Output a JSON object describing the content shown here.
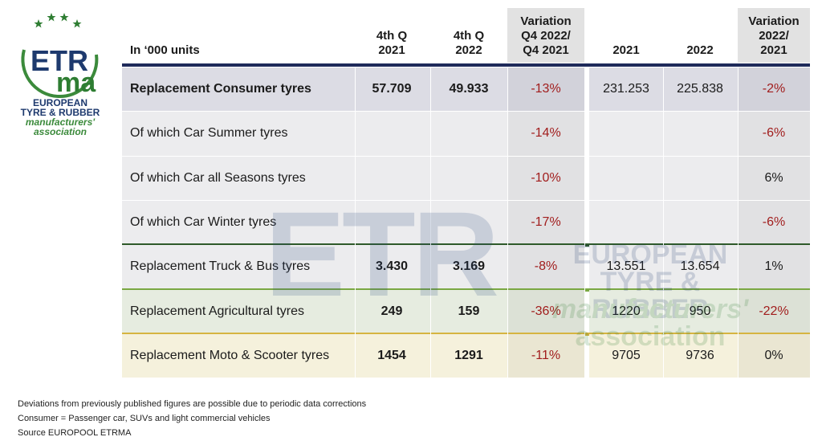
{
  "logo": {
    "letters_top": "ETR",
    "letters_bottom": "ma",
    "line1": "EUROPEAN",
    "line2": "TYRE & RUBBER",
    "line3": "manufacturers'",
    "line4": "association"
  },
  "colors": {
    "navy": "#1e2a5a",
    "dark_green": "#2f5a2a",
    "light_green": "#7aa843",
    "gold": "#d6b441",
    "negative": "#a11d1d",
    "row_grey": "#ececee",
    "row_blue": "#dcdce4",
    "row_green": "#e6ece0",
    "row_cream": "#f5f1dc",
    "variation_col": "#e2e2e2"
  },
  "chart_data": {
    "type": "table",
    "unit_label": "In ‘000 units",
    "columns": [
      "4th Q\n2021",
      "4th Q\n2022",
      "Variation\nQ4 2022/\nQ4 2021",
      "2021",
      "2022",
      "Variation\n2022/\n2021"
    ],
    "rows": [
      {
        "label": "Replacement Consumer tyres",
        "bold": true,
        "q4_2021": "57.709",
        "q4_2022": "49.933",
        "var_q4": "-13%",
        "y2021": "231.253",
        "y2022": "225.838",
        "var_year": "-2%"
      },
      {
        "label": "Of which Car Summer tyres",
        "bold": false,
        "q4_2021": "",
        "q4_2022": "",
        "var_q4": "-14%",
        "y2021": "",
        "y2022": "",
        "var_year": "-6%"
      },
      {
        "label": "Of which Car all Seasons tyres",
        "bold": false,
        "q4_2021": "",
        "q4_2022": "",
        "var_q4": "-10%",
        "y2021": "",
        "y2022": "",
        "var_year": "6%"
      },
      {
        "label": "Of which Car Winter tyres",
        "bold": false,
        "q4_2021": "",
        "q4_2022": "",
        "var_q4": "-17%",
        "y2021": "",
        "y2022": "",
        "var_year": "-6%"
      },
      {
        "label": "Replacement Truck & Bus tyres",
        "bold": false,
        "q4_2021": "3.430",
        "q4_2022": "3.169",
        "var_q4": "-8%",
        "y2021": "13.551",
        "y2022": "13.654",
        "var_year": "1%"
      },
      {
        "label": "Replacement Agricultural tyres",
        "bold": false,
        "q4_2021": "249",
        "q4_2022": "159",
        "var_q4": "-36%",
        "y2021": "1220",
        "y2022": "950",
        "var_year": "-22%"
      },
      {
        "label": "Replacement Moto & Scooter tyres",
        "bold": false,
        "q4_2021": "1454",
        "q4_2022": "1291",
        "var_q4": "-11%",
        "y2021": "9705",
        "y2022": "9736",
        "var_year": "0%"
      }
    ]
  },
  "footnotes": [
    "Deviations from previously published figures are possible due to periodic data corrections",
    "Consumer = Passenger car, SUVs and light commercial vehicles",
    "Source EUROPOOL ETRMA"
  ]
}
